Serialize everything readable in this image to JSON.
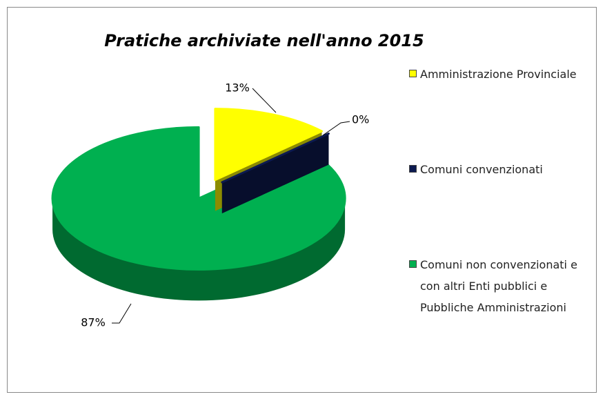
{
  "chart_data": {
    "type": "pie3d",
    "title": "Pratiche archiviate nell'anno 2015",
    "categories": [
      "Amministrazione Provinciale",
      "Comuni convenzionati",
      "Comuni non convenzionati e con altri Enti pubblici e Pubbliche Amministrazioni"
    ],
    "values": [
      13,
      0,
      87
    ],
    "value_labels": [
      "13%",
      "0%",
      "87%"
    ],
    "colors": [
      "#ffff00",
      "#0c1a50",
      "#00b050"
    ],
    "legend": "right"
  }
}
